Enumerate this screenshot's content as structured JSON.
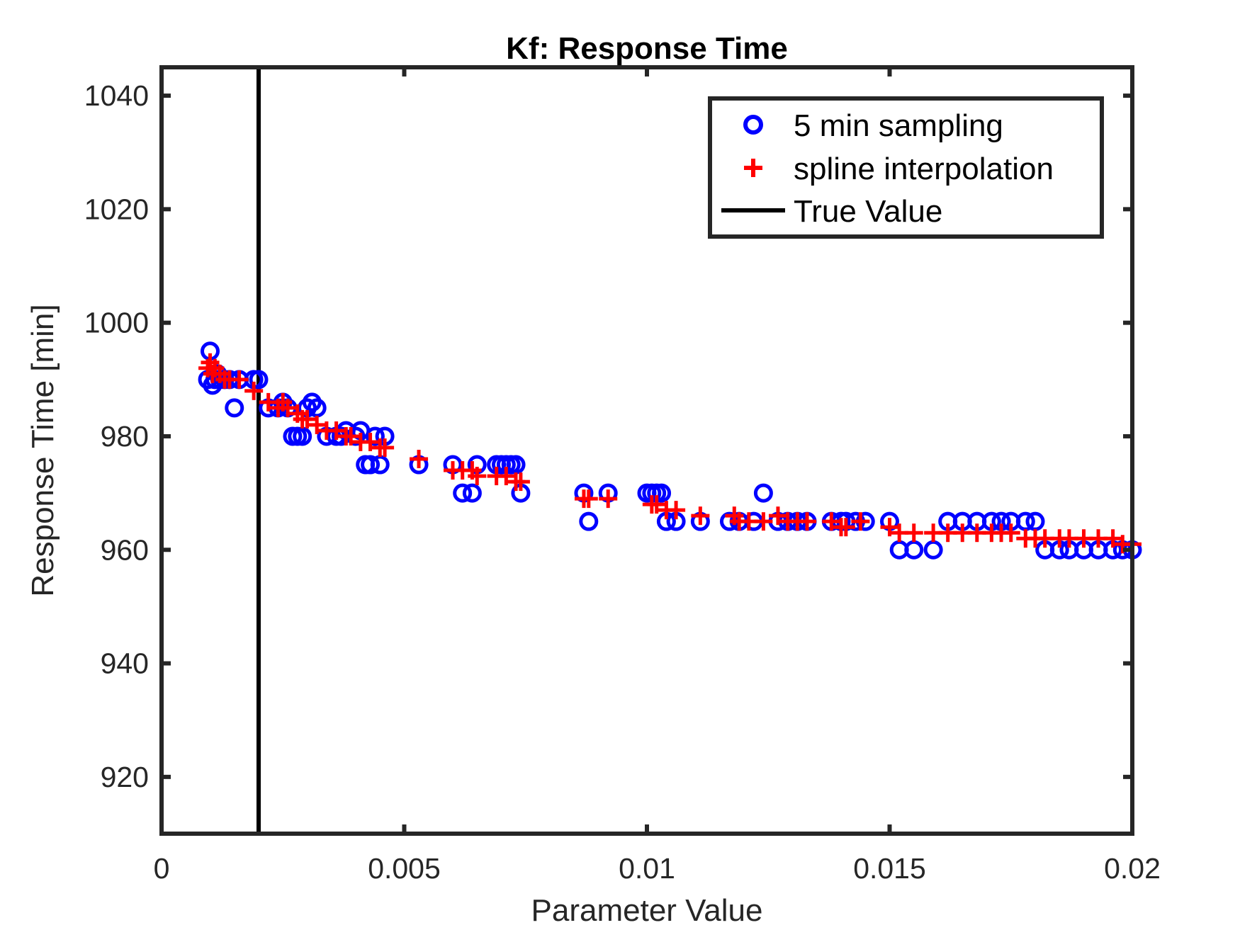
{
  "chart_data": {
    "type": "scatter",
    "title": "Kf: Response Time",
    "xlabel": "Parameter Value",
    "ylabel": "Response Time [min]",
    "xlim": [
      0,
      0.02
    ],
    "ylim": [
      910,
      1045
    ],
    "x_ticks": [
      0,
      0.005,
      0.01,
      0.015,
      0.02
    ],
    "x_tick_labels": [
      "0",
      "0.005",
      "0.01",
      "0.015",
      "0.02"
    ],
    "y_ticks": [
      920,
      940,
      960,
      980,
      1000,
      1020,
      1040
    ],
    "y_tick_labels": [
      "920",
      "940",
      "960",
      "980",
      "1000",
      "1020",
      "1040"
    ],
    "grid": false,
    "legend_position": "top-right",
    "legend": [
      "5 min sampling",
      "spline interpolation",
      "True Value"
    ],
    "colors": {
      "sampling": "#0000ff",
      "spline": "#ff0000",
      "true_value": "#000000",
      "axes": "#262626"
    },
    "true_value": 0.002,
    "series": [
      {
        "name": "5 min sampling",
        "marker": "circle",
        "x": [
          0.00095,
          0.001,
          0.00105,
          0.0011,
          0.00115,
          0.0012,
          0.0013,
          0.0014,
          0.0015,
          0.0016,
          0.0019,
          0.002,
          0.0022,
          0.0024,
          0.0025,
          0.0026,
          0.0027,
          0.0028,
          0.0029,
          0.003,
          0.0031,
          0.0032,
          0.0034,
          0.0036,
          0.0037,
          0.0038,
          0.004,
          0.0041,
          0.0042,
          0.0043,
          0.0044,
          0.0045,
          0.0046,
          0.0053,
          0.006,
          0.0062,
          0.0064,
          0.0065,
          0.0069,
          0.007,
          0.0071,
          0.0072,
          0.0073,
          0.0074,
          0.0087,
          0.0088,
          0.0092,
          0.01,
          0.0101,
          0.0102,
          0.0103,
          0.0104,
          0.0106,
          0.0111,
          0.0117,
          0.0119,
          0.0122,
          0.0124,
          0.0127,
          0.0129,
          0.0131,
          0.0133,
          0.0138,
          0.014,
          0.0141,
          0.0143,
          0.0145,
          0.015,
          0.0152,
          0.0155,
          0.0159,
          0.0162,
          0.0165,
          0.0168,
          0.0171,
          0.0173,
          0.0175,
          0.0178,
          0.018,
          0.0182,
          0.0185,
          0.0187,
          0.019,
          0.0193,
          0.0196,
          0.0198,
          0.02
        ],
        "y": [
          990,
          995,
          989,
          990,
          991,
          990,
          990,
          990,
          985,
          990,
          990,
          990,
          985,
          985,
          986,
          985,
          980,
          980,
          980,
          985,
          986,
          985,
          980,
          980,
          980,
          981,
          980,
          981,
          975,
          975,
          980,
          975,
          980,
          975,
          975,
          970,
          970,
          975,
          975,
          975,
          975,
          975,
          975,
          970,
          970,
          965,
          970,
          970,
          970,
          970,
          970,
          965,
          965,
          965,
          965,
          965,
          965,
          970,
          965,
          965,
          965,
          965,
          965,
          965,
          965,
          965,
          965,
          965,
          960,
          960,
          960,
          965,
          965,
          965,
          965,
          965,
          965,
          965,
          965,
          960,
          960,
          960,
          960,
          960,
          960,
          960,
          960
        ]
      },
      {
        "name": "spline interpolation",
        "marker": "plus",
        "x": [
          0.00095,
          0.001,
          0.00105,
          0.0011,
          0.0012,
          0.0013,
          0.0014,
          0.0016,
          0.0019,
          0.0022,
          0.0024,
          0.0025,
          0.0026,
          0.0028,
          0.0029,
          0.003,
          0.0032,
          0.0034,
          0.0036,
          0.0038,
          0.0039,
          0.0041,
          0.0043,
          0.0045,
          0.0046,
          0.0053,
          0.006,
          0.0062,
          0.0064,
          0.0065,
          0.0069,
          0.0071,
          0.0073,
          0.0074,
          0.0087,
          0.0088,
          0.0092,
          0.0101,
          0.0102,
          0.0104,
          0.0106,
          0.0111,
          0.0118,
          0.0119,
          0.0121,
          0.0124,
          0.0127,
          0.0129,
          0.0131,
          0.0133,
          0.0138,
          0.014,
          0.0141,
          0.0144,
          0.015,
          0.0152,
          0.0155,
          0.0159,
          0.0162,
          0.0165,
          0.0168,
          0.0171,
          0.0173,
          0.0175,
          0.0178,
          0.018,
          0.0182,
          0.0185,
          0.0187,
          0.019,
          0.0193,
          0.0196,
          0.0198,
          0.02
        ],
        "y": [
          992,
          993,
          991,
          992,
          991,
          990,
          990,
          990,
          988,
          986,
          985,
          986,
          985,
          984,
          983,
          983,
          982,
          981,
          981,
          980,
          980,
          979,
          979,
          978,
          978,
          976,
          974,
          974,
          974,
          973,
          973,
          973,
          972,
          972,
          969,
          969,
          969,
          968,
          968,
          967,
          967,
          966,
          966,
          965,
          965,
          965,
          966,
          965,
          965,
          965,
          965,
          964,
          964,
          965,
          964,
          963,
          963,
          963,
          963,
          963,
          963,
          963,
          963,
          963,
          962,
          962,
          962,
          962,
          962,
          962,
          962,
          962,
          961,
          961
        ]
      }
    ]
  }
}
